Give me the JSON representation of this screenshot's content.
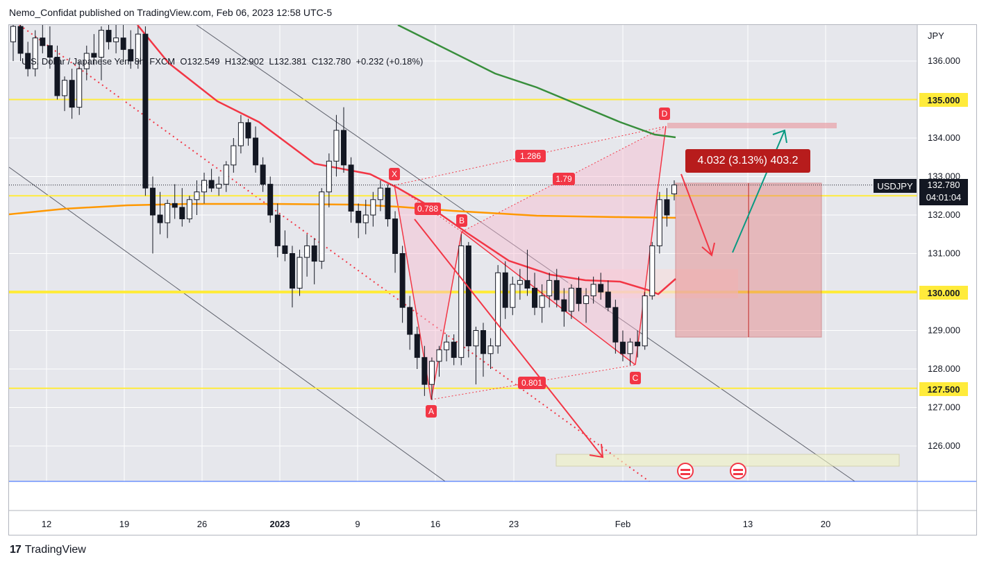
{
  "publisher": {
    "line": "Nemo_Confidat published on TradingView.com, Feb 06, 2023 12:58 UTC-5"
  },
  "legend": {
    "symbol": "U.S. Dollar / Japanese Yen, 8h, FXCM",
    "open_label": "O",
    "open": "132.549",
    "high_label": "H",
    "high": "132.902",
    "low_label": "L",
    "low": "132.381",
    "close_label": "C",
    "close": "132.780",
    "change": "+0.232 (+0.18%)"
  },
  "price_axis": {
    "currency": "JPY",
    "ticks": [
      "136.000",
      "134.000",
      "133.000",
      "132.000",
      "131.000",
      "129.000",
      "128.000",
      "127.000",
      "126.000"
    ]
  },
  "time_axis": {
    "ticks": [
      "12",
      "19",
      "26",
      "2023",
      "9",
      "16",
      "23",
      "Feb",
      "13",
      "20"
    ]
  },
  "badges": {
    "ticker": "USDJPY",
    "last_price": "132.780",
    "countdown": "04:01:04",
    "level_135": "135.000",
    "level_130": "130.000",
    "level_1275": "127.500"
  },
  "measure": {
    "label": "4.032 (3.13%) 403.2"
  },
  "harmonic": {
    "points": {
      "X": "X",
      "A": "A",
      "B": "B",
      "C": "C",
      "D": "D"
    },
    "ratios": {
      "xb": "0.788",
      "ac": "0.801",
      "bd": "1.79",
      "xd": "1.286"
    }
  },
  "footer": {
    "brand": "TradingView"
  },
  "colors": {
    "level_line": "#ffeb3b",
    "ema_red": "#f23645",
    "ema_orange": "#ff9800",
    "ema_green": "#388e3c",
    "pattern": "#f23645",
    "arrow_up": "#089981",
    "measure_fill": "#b71c1c"
  },
  "chart_data": {
    "type": "candlestick",
    "title": "U.S. Dollar / Japanese Yen, 8h, FXCM",
    "ylabel": "JPY",
    "ylim": [
      125.0,
      137.0
    ],
    "horizontal_levels": [
      135.0,
      132.5,
      130.0,
      127.5
    ],
    "grid": true,
    "candles": [
      [
        136.5,
        137.2,
        136.0,
        136.9
      ],
      [
        136.9,
        137.1,
        136.0,
        136.2
      ],
      [
        136.2,
        136.5,
        135.6,
        135.8
      ],
      [
        135.8,
        136.8,
        135.6,
        136.6
      ],
      [
        136.6,
        137.0,
        136.2,
        136.4
      ],
      [
        136.4,
        136.9,
        135.8,
        136.1
      ],
      [
        136.1,
        136.4,
        135.0,
        135.1
      ],
      [
        135.1,
        135.6,
        134.7,
        135.5
      ],
      [
        135.5,
        135.8,
        134.5,
        134.8
      ],
      [
        134.8,
        136.0,
        134.6,
        135.8
      ],
      [
        135.8,
        136.4,
        135.5,
        136.2
      ],
      [
        136.2,
        136.7,
        135.9,
        136.1
      ],
      [
        136.1,
        136.9,
        135.5,
        136.8
      ],
      [
        136.8,
        137.0,
        136.3,
        136.5
      ],
      [
        136.5,
        137.0,
        136.2,
        136.6
      ],
      [
        136.6,
        137.0,
        136.0,
        136.3
      ],
      [
        136.3,
        136.8,
        135.8,
        136.0
      ],
      [
        136.0,
        136.9,
        135.8,
        136.7
      ],
      [
        136.7,
        136.9,
        132.5,
        132.7
      ],
      [
        132.7,
        133.0,
        131.0,
        132.0
      ],
      [
        132.0,
        132.6,
        131.5,
        131.8
      ],
      [
        131.8,
        132.4,
        131.4,
        132.3
      ],
      [
        132.3,
        132.8,
        131.9,
        132.2
      ],
      [
        132.2,
        132.7,
        131.7,
        131.9
      ],
      [
        131.9,
        132.5,
        131.8,
        132.4
      ],
      [
        132.4,
        132.9,
        132.0,
        132.6
      ],
      [
        132.6,
        133.1,
        132.3,
        132.9
      ],
      [
        132.9,
        133.2,
        132.6,
        132.7
      ],
      [
        132.7,
        133.0,
        132.5,
        132.8
      ],
      [
        132.8,
        133.4,
        132.6,
        133.3
      ],
      [
        133.3,
        134.0,
        133.1,
        133.8
      ],
      [
        133.8,
        134.6,
        133.6,
        134.4
      ],
      [
        134.4,
        134.5,
        133.8,
        134.0
      ],
      [
        134.0,
        134.3,
        133.1,
        133.3
      ],
      [
        133.3,
        133.5,
        132.6,
        132.8
      ],
      [
        132.8,
        133.0,
        131.8,
        132.0
      ],
      [
        132.0,
        132.3,
        130.9,
        131.2
      ],
      [
        131.2,
        131.6,
        130.8,
        131.0
      ],
      [
        131.0,
        131.2,
        129.6,
        130.1
      ],
      [
        130.1,
        131.1,
        129.9,
        130.9
      ],
      [
        130.9,
        131.5,
        130.4,
        131.2
      ],
      [
        131.2,
        131.4,
        130.2,
        130.8
      ],
      [
        130.8,
        132.7,
        130.6,
        132.6
      ],
      [
        132.6,
        133.6,
        132.2,
        133.4
      ],
      [
        133.4,
        134.6,
        133.0,
        134.2
      ],
      [
        134.2,
        134.8,
        133.1,
        133.3
      ],
      [
        133.3,
        133.5,
        131.8,
        132.1
      ],
      [
        132.1,
        132.3,
        131.4,
        131.8
      ],
      [
        131.8,
        132.4,
        131.5,
        132.0
      ],
      [
        132.0,
        132.6,
        131.7,
        132.4
      ],
      [
        132.4,
        132.9,
        132.1,
        132.7
      ],
      [
        132.7,
        132.8,
        131.7,
        131.9
      ],
      [
        131.9,
        132.1,
        130.5,
        131.0
      ],
      [
        131.0,
        131.2,
        129.2,
        129.6
      ],
      [
        129.6,
        129.9,
        128.5,
        128.9
      ],
      [
        128.9,
        129.1,
        128.0,
        128.3
      ],
      [
        128.3,
        128.6,
        127.3,
        127.6
      ],
      [
        127.6,
        128.3,
        127.2,
        128.2
      ],
      [
        128.2,
        128.6,
        127.8,
        128.5
      ],
      [
        128.5,
        128.9,
        128.2,
        128.7
      ],
      [
        128.7,
        128.9,
        128.1,
        128.3
      ],
      [
        128.3,
        131.5,
        128.1,
        131.2
      ],
      [
        131.2,
        131.3,
        128.3,
        128.6
      ],
      [
        128.6,
        129.1,
        127.6,
        129.0
      ],
      [
        129.0,
        129.2,
        127.8,
        128.4
      ],
      [
        128.4,
        128.8,
        128.0,
        128.6
      ],
      [
        128.6,
        130.7,
        128.4,
        130.5
      ],
      [
        130.5,
        130.8,
        129.3,
        129.6
      ],
      [
        129.6,
        130.4,
        129.4,
        130.2
      ],
      [
        130.2,
        130.6,
        129.8,
        130.3
      ],
      [
        130.3,
        131.1,
        129.9,
        130.1
      ],
      [
        130.1,
        130.5,
        129.4,
        129.6
      ],
      [
        129.6,
        130.2,
        129.2,
        129.9
      ],
      [
        129.9,
        130.5,
        129.6,
        130.3
      ],
      [
        130.3,
        130.6,
        129.6,
        129.8
      ],
      [
        129.8,
        130.1,
        129.1,
        129.5
      ],
      [
        129.5,
        130.2,
        129.3,
        130.1
      ],
      [
        130.1,
        130.4,
        129.5,
        129.7
      ],
      [
        129.7,
        130.1,
        129.2,
        129.9
      ],
      [
        129.9,
        130.4,
        129.7,
        130.2
      ],
      [
        130.2,
        130.5,
        129.8,
        130.0
      ],
      [
        130.0,
        130.3,
        129.5,
        129.6
      ],
      [
        129.6,
        129.8,
        128.4,
        128.7
      ],
      [
        128.7,
        129.0,
        128.2,
        128.4
      ],
      [
        128.4,
        128.8,
        128.1,
        128.7
      ],
      [
        128.7,
        129.0,
        128.3,
        128.6
      ],
      [
        128.6,
        130.0,
        128.5,
        129.9
      ],
      [
        129.9,
        131.3,
        129.8,
        131.2
      ],
      [
        131.2,
        132.6,
        131.0,
        132.4
      ],
      [
        132.4,
        132.7,
        131.7,
        132.0
      ],
      [
        132.549,
        132.902,
        132.381,
        132.78
      ]
    ]
  }
}
